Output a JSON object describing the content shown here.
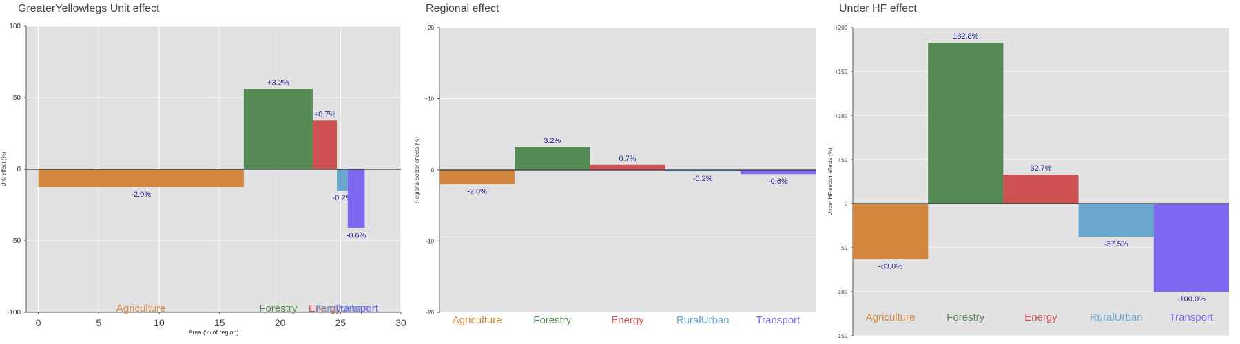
{
  "sector_colors": {
    "Agriculture": "#D3873F",
    "Forestry": "#548A53",
    "Energy": "#CE5252",
    "RuralUrban": "#6AA6CD",
    "Transport": "#7B68EE"
  },
  "chart_data": [
    {
      "type": "bar",
      "title": "GreaterYellowlegs Unit effect",
      "xlabel": "Area (% of region)",
      "ylabel": "Unit effect (%)",
      "xlim": [
        -1,
        30
      ],
      "ylim": [
        -100,
        100
      ],
      "xticks": [
        "0",
        "5",
        "10",
        "15",
        "20",
        "25",
        "30"
      ],
      "yticks": [
        "-100",
        "-50",
        "0",
        "50",
        "100"
      ],
      "grid": true,
      "categories": [
        "Agriculture",
        "Forestry",
        "Energy",
        "RuralUrban",
        "Transport"
      ],
      "bars": [
        {
          "sector": "Agriculture",
          "x_start": 0,
          "x_end": 17,
          "value": -12.5,
          "label": "-2.0%"
        },
        {
          "sector": "Forestry",
          "x_start": 17,
          "x_end": 22.7,
          "value": 56,
          "label": "+3.2%"
        },
        {
          "sector": "Energy",
          "x_start": 22.7,
          "x_end": 24.7,
          "value": 34,
          "label": "+0.7%"
        },
        {
          "sector": "RuralUrban",
          "x_start": 24.7,
          "x_end": 25.6,
          "value": -15,
          "label": "-0.2%"
        },
        {
          "sector": "Transport",
          "x_start": 25.6,
          "x_end": 27,
          "value": -41,
          "label": "-0.6%"
        }
      ]
    },
    {
      "type": "bar",
      "title": "Regional effect",
      "xlabel": "",
      "ylabel": "Regional sector effects (%)",
      "ylim": [
        -20,
        20
      ],
      "yticks": [
        "-20",
        "-10",
        "0",
        "+10",
        "+20"
      ],
      "grid": true,
      "categories": [
        "Agriculture",
        "Forestry",
        "Energy",
        "RuralUrban",
        "Transport"
      ],
      "values": [
        -2.0,
        3.2,
        0.7,
        -0.2,
        -0.6
      ],
      "labels": [
        "-2.0%",
        "3.2%",
        "0.7%",
        "-0.2%",
        "-0.6%"
      ]
    },
    {
      "type": "bar",
      "title": "Under HF effect",
      "xlabel": "",
      "ylabel": "Under HF sector effects (%)",
      "ylim": [
        -150,
        200
      ],
      "yticks": [
        "-150",
        "-100",
        "-50",
        "0",
        "+50",
        "+100",
        "+150",
        "+200"
      ],
      "grid": true,
      "categories": [
        "Agriculture",
        "Forestry",
        "Energy",
        "RuralUrban",
        "Transport"
      ],
      "values": [
        -63.0,
        182.8,
        32.7,
        -37.5,
        -100.0
      ],
      "labels": [
        "-63.0%",
        "182.8%",
        "32.7%",
        "-37.5%",
        "-100.0%"
      ]
    }
  ]
}
